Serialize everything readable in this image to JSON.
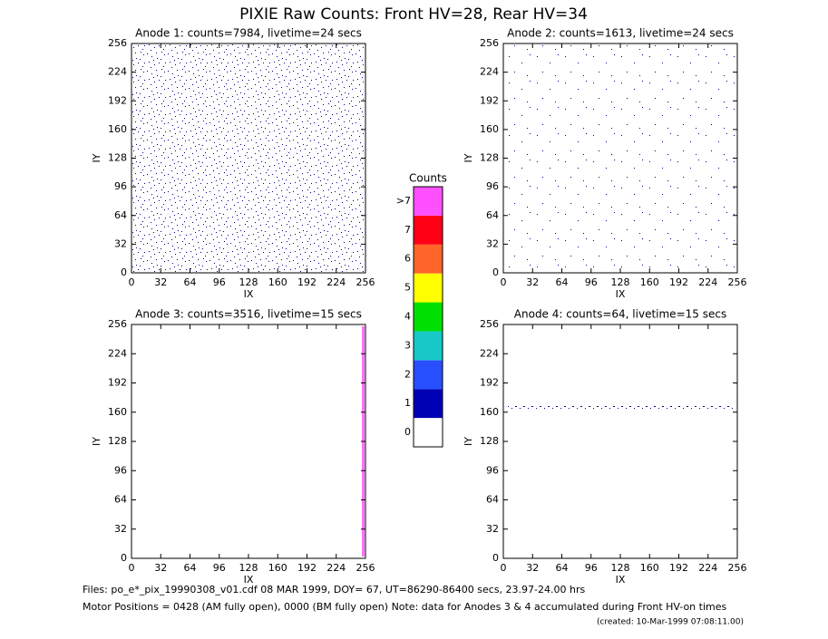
{
  "title": "PIXIE Raw Counts:  Front HV=28, Rear HV=34",
  "chart_data": [
    {
      "type": "scatter",
      "title": "Anode 1: counts=7984, livetime=24 secs",
      "x_label": "IX",
      "y_label": "IY",
      "xlim": [
        0,
        256
      ],
      "ylim": [
        0,
        256
      ],
      "xticks": [
        0,
        32,
        64,
        96,
        128,
        160,
        192,
        224,
        256
      ],
      "yticks": [
        0,
        32,
        64,
        96,
        128,
        160,
        192,
        224,
        256
      ]
    },
    {
      "type": "scatter",
      "title": "Anode 2: counts=1613, livetime=24 secs",
      "x_label": "IX",
      "y_label": "IY",
      "xlim": [
        0,
        256
      ],
      "ylim": [
        0,
        256
      ],
      "xticks": [
        0,
        32,
        64,
        96,
        128,
        160,
        192,
        224,
        256
      ],
      "yticks": [
        0,
        32,
        64,
        96,
        128,
        160,
        192,
        224,
        256
      ]
    },
    {
      "type": "scatter",
      "title": "Anode 3: counts=3516, livetime=15 secs",
      "x_label": "IX",
      "y_label": "IY",
      "xlim": [
        0,
        256
      ],
      "ylim": [
        0,
        256
      ],
      "xticks": [
        0,
        32,
        64,
        96,
        128,
        160,
        192,
        224,
        256
      ],
      "yticks": [
        0,
        32,
        64,
        96,
        128,
        160,
        192,
        224,
        256
      ]
    },
    {
      "type": "scatter",
      "title": "Anode 4: counts=64, livetime=15 secs",
      "x_label": "IX",
      "y_label": "IY",
      "xlim": [
        0,
        256
      ],
      "ylim": [
        0,
        256
      ],
      "xticks": [
        0,
        32,
        64,
        96,
        128,
        160,
        192,
        224,
        256
      ],
      "yticks": [
        0,
        32,
        64,
        96,
        128,
        160,
        192,
        224,
        256
      ]
    }
  ],
  "colorbar": {
    "title": "Counts",
    "ticks": [
      0,
      1,
      2,
      3,
      4,
      5,
      6,
      7,
      {
        "value": 8,
        "label": ">7"
      }
    ],
    "colors": [
      "#ffffff",
      "#0000b4",
      "#2850ff",
      "#18c8c8",
      "#00e000",
      "#ffff00",
      "#ff6428",
      "#ff0014",
      "#ff50ff"
    ]
  },
  "footer": [
    "Files: po_e*_pix_19990308_v01.cdf    08 MAR 1999, DOY= 67, UT=86290-86400 secs, 23.97-24.00 hrs",
    "Motor Positions = 0428 (AM fully open), 0000 (BM fully open)    Note: data for Anodes 3 & 4 accumulated during Front HV-on times",
    "(created: 10-Mar-1999 07:08:11.00)"
  ]
}
